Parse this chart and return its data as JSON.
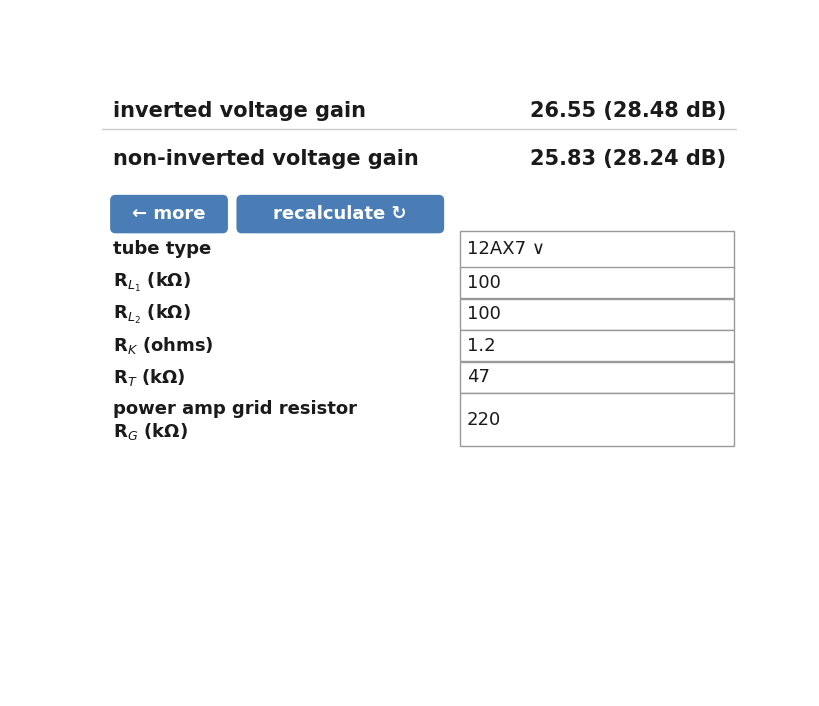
{
  "bg_color": "#ffffff",
  "label_color": "#1a1a1a",
  "row1_label": "inverted voltage gain",
  "row1_value": "26.55 (28.48 dB)",
  "row2_label": "non-inverted voltage gain",
  "row2_value": "25.83 (28.24 dB)",
  "btn1_text": "← more",
  "btn2_text": "recalculate ↻",
  "btn_color": "#4a7db5",
  "btn_text_color": "#ffffff",
  "divider_color": "#cccccc",
  "field_border_color": "#999999",
  "field_bg": "#ffffff",
  "font_size_result": 15,
  "font_size_label": 13,
  "font_size_field": 13
}
